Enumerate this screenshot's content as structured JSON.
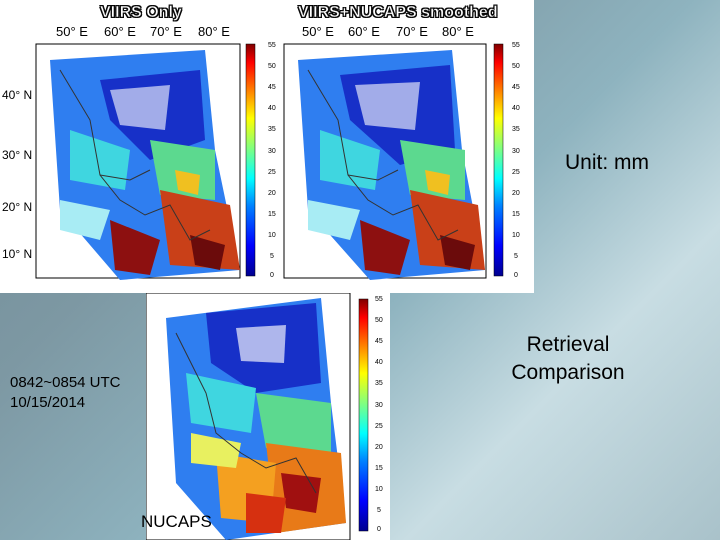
{
  "top_left": {
    "title": "VIIRS Only",
    "lon_labels": [
      "50° E",
      "60° E",
      "70° E",
      "80° E"
    ],
    "lat_labels": [
      "40° N",
      "30° N",
      "20° N",
      "10° N"
    ]
  },
  "top_right": {
    "title": "VIIRS+NUCAPS smoothed",
    "lon_labels": [
      "50° E",
      "60° E",
      "70° E",
      "80° E"
    ]
  },
  "bottom": {
    "title": "NUCAPS"
  },
  "colorbar": {
    "ticks": [
      "55",
      "50",
      "45",
      "40",
      "35",
      "30",
      "25",
      "20",
      "15",
      "10",
      "5",
      "0"
    ],
    "min": 0,
    "max": 55,
    "colors": [
      "#00008f",
      "#0000ff",
      "#0080ff",
      "#00ffff",
      "#80ff80",
      "#ffff00",
      "#ff8000",
      "#ff0000",
      "#800000"
    ]
  },
  "slide": {
    "unit_label": "Unit: mm",
    "time_label": "0842~0854 UTC",
    "date_label": "10/15/2014",
    "caption_line1": "Retrieval",
    "caption_line2": "Comparison"
  }
}
